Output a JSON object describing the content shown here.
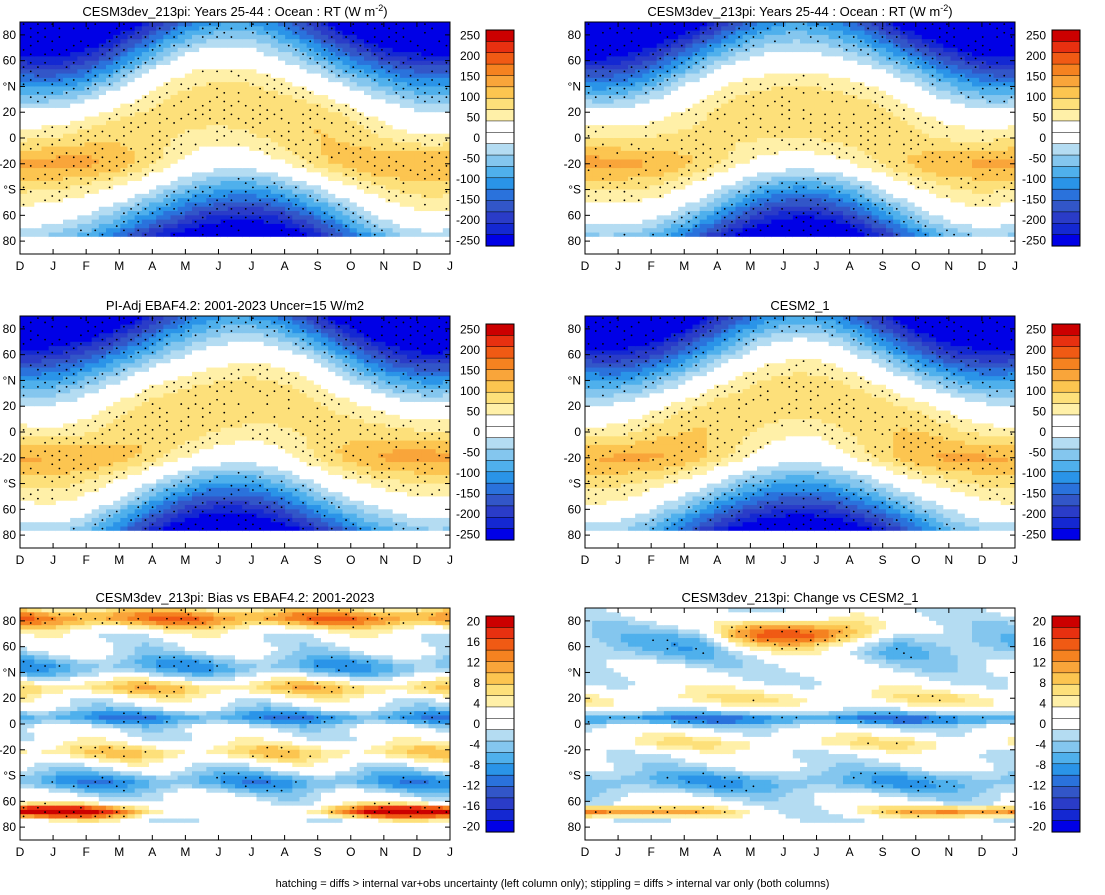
{
  "chart_data": [
    {
      "type": "heatmap",
      "title": "CESM3dev_213pi: Years 25-44 : Ocean : RT (W m-2)",
      "title_main": "CESM3dev_213pi: Years 25-44 : Ocean : RT (W m",
      "title_sup": "-2",
      "title_end": ")",
      "field": "full",
      "variant": 0,
      "colorbar": "full"
    },
    {
      "type": "heatmap",
      "title": "CESM3dev_213pi: Years 25-44 : Ocean : RT (W m-2)",
      "title_main": "CESM3dev_213pi: Years 25-44 : Ocean : RT (W m",
      "title_sup": "-2",
      "title_end": ")",
      "field": "full",
      "variant": 1,
      "colorbar": "full"
    },
    {
      "type": "heatmap",
      "title": "PI-Adj EBAF4.2: 2001-2023 Uncer=15 W/m2",
      "title_main": "PI-Adj EBAF4.2: 2001-2023 Uncer=15 W/m2",
      "title_sup": "",
      "title_end": "",
      "field": "full",
      "variant": 2,
      "colorbar": "full"
    },
    {
      "type": "heatmap",
      "title": "CESM2_1",
      "title_main": "CESM2_1",
      "title_sup": "",
      "title_end": "",
      "field": "full",
      "variant": 3,
      "colorbar": "full"
    },
    {
      "type": "heatmap",
      "title": "CESM3dev_213pi: Bias vs EBAF4.2: 2001-2023",
      "title_main": "CESM3dev_213pi: Bias vs EBAF4.2: 2001-2023",
      "title_sup": "",
      "title_end": "",
      "field": "bias",
      "variant": 4,
      "colorbar": "diff"
    },
    {
      "type": "heatmap",
      "title": "CESM3dev_213pi: Change vs CESM2_1",
      "title_main": "CESM3dev_213pi: Change vs CESM2_1",
      "title_sup": "",
      "title_end": "",
      "field": "change",
      "variant": 5,
      "colorbar": "diff"
    }
  ],
  "axes": {
    "x_tick_labels": [
      "D",
      "J",
      "F",
      "M",
      "A",
      "M",
      "J",
      "J",
      "A",
      "S",
      "O",
      "N",
      "D",
      "J"
    ],
    "y_ticks": [
      80,
      60,
      40,
      20,
      0,
      -20,
      -40,
      -60,
      -80
    ],
    "y_tick_labels": [
      "80",
      "60",
      "°N",
      "20",
      "0",
      "-20",
      "°S",
      "60",
      "80"
    ],
    "ylim": [
      -90,
      90
    ]
  },
  "colorbars": {
    "full": {
      "labels": [
        "250",
        "200",
        "150",
        "100",
        "50",
        "0",
        "-50",
        "-100",
        "-150",
        "-200",
        "-250"
      ],
      "colors": [
        "#cc0000",
        "#e83010",
        "#f05a14",
        "#f58220",
        "#f9a53a",
        "#fcc550",
        "#fde07a",
        "#fff0a8",
        "#ffffff",
        "#ffffff",
        "#b4dcf2",
        "#84c6ee",
        "#4fb0ec",
        "#2a94e8",
        "#2a72dc",
        "#3256c8",
        "#2a3cc8",
        "#1428d2",
        "#0000e6"
      ]
    },
    "diff": {
      "labels": [
        "20",
        "16",
        "12",
        "8",
        "4",
        "0",
        "-4",
        "-8",
        "-12",
        "-16",
        "-20"
      ],
      "colors": [
        "#cc0000",
        "#e83010",
        "#f05a14",
        "#f58220",
        "#f9a53a",
        "#fcc550",
        "#fde07a",
        "#fff0a8",
        "#ffffff",
        "#ffffff",
        "#b4dcf2",
        "#84c6ee",
        "#4fb0ec",
        "#2a94e8",
        "#2a72dc",
        "#3256c8",
        "#2a3cc8",
        "#1428d2",
        "#0000e6"
      ]
    }
  },
  "footnote": "hatching = diffs > internal var+obs uncertainty (left column only); stippling = diffs > internal var only (both columns)"
}
